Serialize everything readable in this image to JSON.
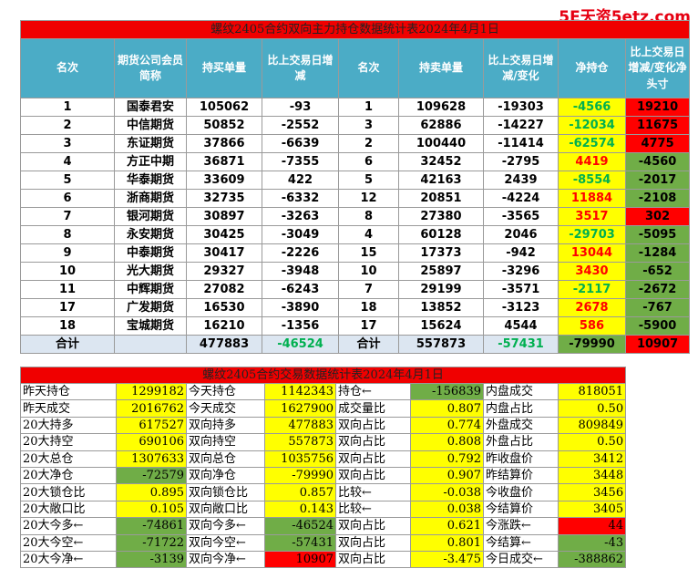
{
  "watermark": "5E天资5etz.com",
  "position_table": {
    "title": "螺纹2405合约双向主力持仓数据统计表2024年4月1日",
    "header": [
      "名次",
      "期货公司会员简称",
      "持买单量",
      "比上交易日增减",
      "名次",
      "持卖单量",
      "比上交易日增减/变化",
      "净持仓",
      "比上交易日增减/变化净头寸"
    ],
    "rows": [
      [
        "1",
        "国泰君安",
        "105062",
        "-93",
        "1",
        "109628",
        "-19303",
        "-4566",
        "19210"
      ],
      [
        "2",
        "中信期货",
        "50852",
        "-2552",
        "3",
        "62886",
        "-14227",
        "-12034",
        "11675"
      ],
      [
        "3",
        "东证期货",
        "37866",
        "-6639",
        "2",
        "100440",
        "-11414",
        "-62574",
        "4775"
      ],
      [
        "4",
        "方正中期",
        "36871",
        "-7355",
        "6",
        "32452",
        "-2795",
        "4419",
        "-4560"
      ],
      [
        "5",
        "华泰期货",
        "33609",
        "422",
        "5",
        "42163",
        "2439",
        "-8554",
        "-2017"
      ],
      [
        "6",
        "浙商期货",
        "32735",
        "-6332",
        "12",
        "20851",
        "-4224",
        "11884",
        "-2108"
      ],
      [
        "7",
        "银河期货",
        "30897",
        "-3263",
        "8",
        "27380",
        "-3565",
        "3517",
        "302"
      ],
      [
        "8",
        "永安期货",
        "30425",
        "-3049",
        "4",
        "60128",
        "2046",
        "-29703",
        "-5095"
      ],
      [
        "9",
        "中泰期货",
        "30417",
        "-2226",
        "15",
        "17373",
        "-942",
        "13044",
        "-1284"
      ],
      [
        "10",
        "光大期货",
        "29327",
        "-3948",
        "10",
        "25897",
        "-3296",
        "3430",
        "-652"
      ],
      [
        "11",
        "中辉期货",
        "27082",
        "-6243",
        "7",
        "29199",
        "-3571",
        "-2117",
        "-2672"
      ],
      [
        "17",
        "广发期货",
        "16530",
        "-3890",
        "18",
        "13852",
        "-3123",
        "2678",
        "-767"
      ],
      [
        "18",
        "宝城期货",
        "16210",
        "-1356",
        "17",
        "15624",
        "4544",
        "586",
        "-5900"
      ]
    ],
    "total": {
      "label": "合计",
      "buy": "477883",
      "buy_change": "-46524",
      "label2": "合计",
      "sell": "557873",
      "sell_change": "-57431",
      "net": "-79990",
      "net_change": "10907"
    }
  },
  "trade_table": {
    "title": "螺纹2405合约交易数据统计表2024年4月1日",
    "rows": [
      [
        "昨天持仓",
        "1299182",
        "今天持仓",
        "1142343",
        "持仓←",
        "-156839",
        "内盘成交",
        "818051"
      ],
      [
        "昨天成交",
        "2016762",
        "今天成交",
        "1627900",
        "成交量比",
        "0.807",
        "内盘占比",
        "0.50"
      ],
      [
        "20大持多",
        "617527",
        "双向持多",
        "477883",
        "双向占比",
        "0.774",
        "外盘成交",
        "809849"
      ],
      [
        "20大持空",
        "690106",
        "双向持空",
        "557873",
        "双向占比",
        "0.808",
        "外盘占比",
        "0.50"
      ],
      [
        "20大总仓",
        "1307633",
        "双向总仓",
        "1035756",
        "双向占比",
        "0.792",
        "昨收盘价",
        "3412"
      ],
      [
        "20大净仓",
        "-72579",
        "双向净仓",
        "-79990",
        "双向占比",
        "0.907",
        "昨结算价",
        "3448"
      ],
      [
        "20大锁仓比",
        "0.895",
        "双向锁仓比",
        "0.857",
        "比较←",
        "-0.038",
        "今收盘价",
        "3456"
      ],
      [
        "20大敞口比",
        "0.105",
        "双向敞口比",
        "0.143",
        "比较←",
        "0.038",
        "今结算价",
        "3405"
      ],
      [
        "20大今多←",
        "-74861",
        "双向今多←",
        "-46524",
        "双向占比",
        "0.621",
        "今涨跌←",
        "44"
      ],
      [
        "20大今空←",
        "-71722",
        "双向今空←",
        "-57431",
        "双向占比",
        "0.801",
        "今结算←",
        "-43"
      ],
      [
        "20大今净←",
        "-3139",
        "双向今净←",
        "10907",
        "双向占比",
        "-3.475",
        "今日成交←",
        "-388862"
      ]
    ]
  }
}
